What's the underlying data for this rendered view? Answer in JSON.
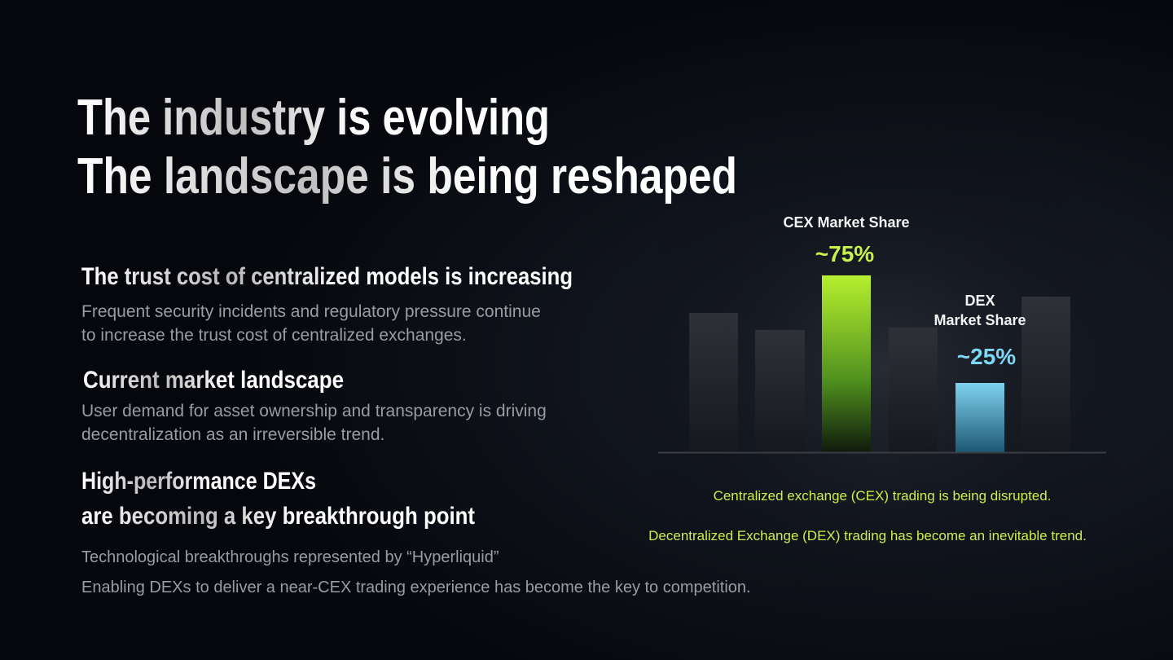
{
  "title": {
    "lines": [
      "The industry is evolving",
      "The landscape is being reshaped"
    ]
  },
  "points": [
    {
      "heading": [
        "The trust cost of centralized models is increasing"
      ],
      "body": [
        "Frequent security incidents and regulatory pressure continue",
        "to increase the trust cost of centralized exchanges."
      ]
    },
    {
      "heading": [
        "Current market landscape"
      ],
      "body": [
        "User demand for asset ownership and transparency is driving",
        "decentralization as an irreversible trend."
      ]
    },
    {
      "heading": [
        "High-performance DEXs",
        "are becoming a key breakthrough point"
      ],
      "body": [
        "Technological breakthroughs represented by “Hyperliquid”",
        "Enabling DEXs to deliver a near-CEX trading experience has become the key to competition."
      ]
    }
  ],
  "chart": {
    "cex_label": "CEX Market Share",
    "cex_value": "~75%",
    "dex_label": [
      "DEX",
      "Market Share"
    ],
    "dex_value": "~25%"
  },
  "notes": [
    "Centralized exchange (CEX) trading is being disrupted.",
    "Decentralized Exchange (DEX) trading has become an inevitable trend."
  ]
}
